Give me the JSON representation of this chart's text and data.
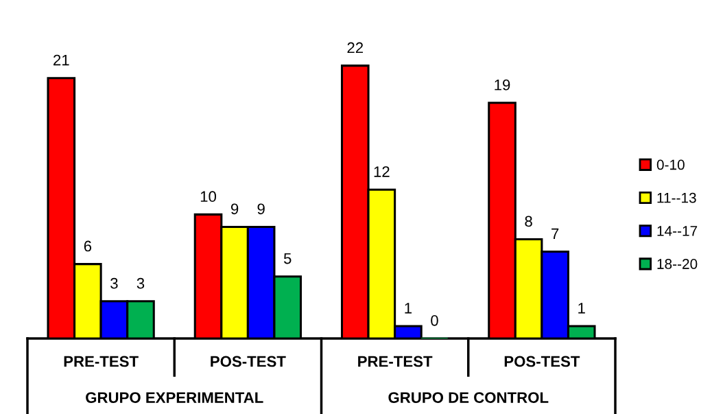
{
  "chart_data": {
    "type": "bar",
    "categories": [
      "PRE-TEST",
      "POS-TEST",
      "PRE-TEST",
      "POS-TEST"
    ],
    "series": [
      {
        "name": "0-10",
        "color": "#ff0000",
        "values": [
          21,
          10,
          22,
          19
        ]
      },
      {
        "name": "11--13",
        "color": "#ffff00",
        "values": [
          6,
          9,
          12,
          8
        ]
      },
      {
        "name": "14--17",
        "color": "#0000ff",
        "values": [
          3,
          9,
          1,
          7
        ]
      },
      {
        "name": "18--20",
        "color": "#00b050",
        "values": [
          3,
          5,
          0,
          1
        ]
      }
    ],
    "annotations": [
      "GRUPO EXPERIMENTAL",
      "GRUPO DE CONTROL"
    ],
    "data_labels": true,
    "legend": "right"
  }
}
